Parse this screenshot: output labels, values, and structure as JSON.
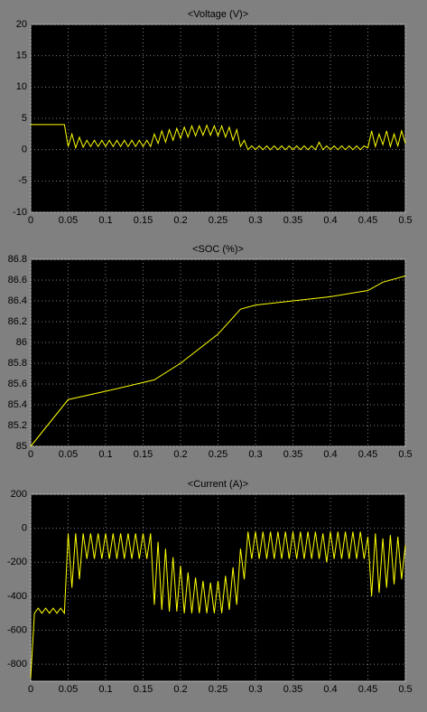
{
  "chart_data": [
    {
      "type": "line",
      "title": "<Voltage (V)>",
      "color": "#ffff00",
      "grid": true,
      "xlim": [
        0,
        0.5
      ],
      "xticks": [
        0,
        0.05,
        0.1,
        0.15,
        0.2,
        0.25,
        0.3,
        0.35,
        0.4,
        0.45,
        0.5
      ],
      "ylim": [
        -10,
        20
      ],
      "yticks": [
        -10,
        -5,
        0,
        5,
        10,
        15,
        20
      ],
      "x": [
        0,
        0.005,
        0.01,
        0.015,
        0.02,
        0.025,
        0.03,
        0.035,
        0.04,
        0.045,
        0.05,
        0.055,
        0.06,
        0.065,
        0.07,
        0.075,
        0.08,
        0.085,
        0.09,
        0.095,
        0.1,
        0.105,
        0.11,
        0.115,
        0.12,
        0.125,
        0.13,
        0.135,
        0.14,
        0.145,
        0.15,
        0.155,
        0.16,
        0.165,
        0.17,
        0.175,
        0.18,
        0.185,
        0.19,
        0.195,
        0.2,
        0.205,
        0.21,
        0.215,
        0.22,
        0.225,
        0.23,
        0.235,
        0.24,
        0.245,
        0.25,
        0.255,
        0.26,
        0.265,
        0.27,
        0.275,
        0.28,
        0.285,
        0.29,
        0.295,
        0.3,
        0.305,
        0.31,
        0.315,
        0.32,
        0.325,
        0.33,
        0.335,
        0.34,
        0.345,
        0.35,
        0.355,
        0.36,
        0.365,
        0.37,
        0.375,
        0.38,
        0.385,
        0.39,
        0.395,
        0.4,
        0.405,
        0.41,
        0.415,
        0.42,
        0.425,
        0.43,
        0.435,
        0.44,
        0.445,
        0.45,
        0.455,
        0.46,
        0.465,
        0.47,
        0.475,
        0.48,
        0.485,
        0.49,
        0.495,
        0.5
      ],
      "values": [
        4,
        4,
        4,
        4,
        4,
        4,
        4,
        4,
        4,
        4,
        0.5,
        2.5,
        0.3,
        2,
        0.4,
        1.5,
        0.5,
        1.5,
        0.5,
        1.5,
        0.5,
        1.5,
        0.5,
        1.5,
        0.5,
        1.5,
        0.5,
        1.5,
        0.5,
        1.5,
        0.5,
        1.5,
        0.5,
        2.5,
        1,
        3,
        1.2,
        3.2,
        1.5,
        3.4,
        1.8,
        3.6,
        2,
        3.8,
        2.2,
        3.8,
        2.3,
        3.9,
        2.3,
        3.8,
        2.2,
        3.8,
        2,
        3.6,
        1.5,
        3.2,
        0.5,
        1.5,
        0,
        0.6,
        0,
        0.6,
        0,
        0.6,
        0,
        0.6,
        0,
        0.6,
        0,
        0.6,
        0,
        0.6,
        0,
        0.6,
        0,
        0.6,
        0,
        1.2,
        0,
        0.6,
        0,
        0.6,
        0,
        0.6,
        0,
        0.6,
        0,
        0.6,
        0,
        0.6,
        0.3,
        3,
        0.5,
        2.5,
        0.8,
        3,
        0.5,
        2.5,
        0.6,
        3,
        1
      ]
    },
    {
      "type": "line",
      "title": "<SOC (%)>",
      "color": "#ffff00",
      "grid": true,
      "xlim": [
        0,
        0.5
      ],
      "xticks": [
        0,
        0.05,
        0.1,
        0.15,
        0.2,
        0.25,
        0.3,
        0.35,
        0.4,
        0.45,
        0.5
      ],
      "ylim": [
        85,
        86.8
      ],
      "yticks": [
        85,
        85.2,
        85.4,
        85.6,
        85.8,
        86,
        86.2,
        86.4,
        86.6,
        86.8
      ],
      "x": [
        0,
        0.05,
        0.1,
        0.165,
        0.2,
        0.25,
        0.28,
        0.3,
        0.35,
        0.4,
        0.45,
        0.47,
        0.5
      ],
      "values": [
        85,
        85.45,
        85.53,
        85.64,
        85.8,
        86.08,
        86.32,
        86.36,
        86.4,
        86.44,
        86.5,
        86.58,
        86.64
      ]
    },
    {
      "type": "line",
      "title": "<Current (A)>",
      "color": "#ffff00",
      "grid": true,
      "xlim": [
        0,
        0.5
      ],
      "xticks": [
        0,
        0.05,
        0.1,
        0.15,
        0.2,
        0.25,
        0.3,
        0.35,
        0.4,
        0.45,
        0.5
      ],
      "ylim": [
        -900,
        200
      ],
      "yticks": [
        -800,
        -600,
        -400,
        -200,
        0,
        200
      ],
      "x": [
        0,
        0.005,
        0.01,
        0.015,
        0.02,
        0.025,
        0.03,
        0.035,
        0.04,
        0.045,
        0.05,
        0.055,
        0.06,
        0.065,
        0.07,
        0.075,
        0.08,
        0.085,
        0.09,
        0.095,
        0.1,
        0.105,
        0.11,
        0.115,
        0.12,
        0.125,
        0.13,
        0.135,
        0.14,
        0.145,
        0.15,
        0.155,
        0.16,
        0.165,
        0.17,
        0.175,
        0.18,
        0.185,
        0.19,
        0.195,
        0.2,
        0.205,
        0.21,
        0.215,
        0.22,
        0.225,
        0.23,
        0.235,
        0.24,
        0.245,
        0.25,
        0.255,
        0.26,
        0.265,
        0.27,
        0.275,
        0.28,
        0.285,
        0.29,
        0.295,
        0.3,
        0.305,
        0.31,
        0.315,
        0.32,
        0.325,
        0.33,
        0.335,
        0.34,
        0.345,
        0.35,
        0.355,
        0.36,
        0.365,
        0.37,
        0.375,
        0.38,
        0.385,
        0.39,
        0.395,
        0.4,
        0.405,
        0.41,
        0.415,
        0.42,
        0.425,
        0.43,
        0.435,
        0.44,
        0.445,
        0.45,
        0.455,
        0.46,
        0.465,
        0.47,
        0.475,
        0.48,
        0.485,
        0.49,
        0.495,
        0.5
      ],
      "values": [
        -880,
        -500,
        -470,
        -500,
        -470,
        -500,
        -470,
        -500,
        -470,
        -500,
        -30,
        -350,
        -30,
        -300,
        -30,
        -180,
        -30,
        -180,
        -30,
        -180,
        -30,
        -180,
        -30,
        -180,
        -30,
        -180,
        -30,
        -180,
        -30,
        -180,
        -30,
        -180,
        -30,
        -450,
        -80,
        -480,
        -120,
        -490,
        -170,
        -490,
        -220,
        -500,
        -260,
        -500,
        -290,
        -500,
        -310,
        -500,
        -320,
        -500,
        -310,
        -500,
        -280,
        -480,
        -230,
        -450,
        -120,
        -300,
        -20,
        -180,
        -20,
        -180,
        -20,
        -180,
        -20,
        -180,
        -20,
        -180,
        -20,
        -180,
        -20,
        -180,
        -20,
        -180,
        -20,
        -180,
        -20,
        -180,
        -30,
        -200,
        -20,
        -180,
        -20,
        -180,
        -20,
        -180,
        -20,
        -180,
        -20,
        -180,
        -50,
        -400,
        -30,
        -380,
        -60,
        -350,
        -40,
        -330,
        -50,
        -300,
        -100
      ]
    }
  ]
}
